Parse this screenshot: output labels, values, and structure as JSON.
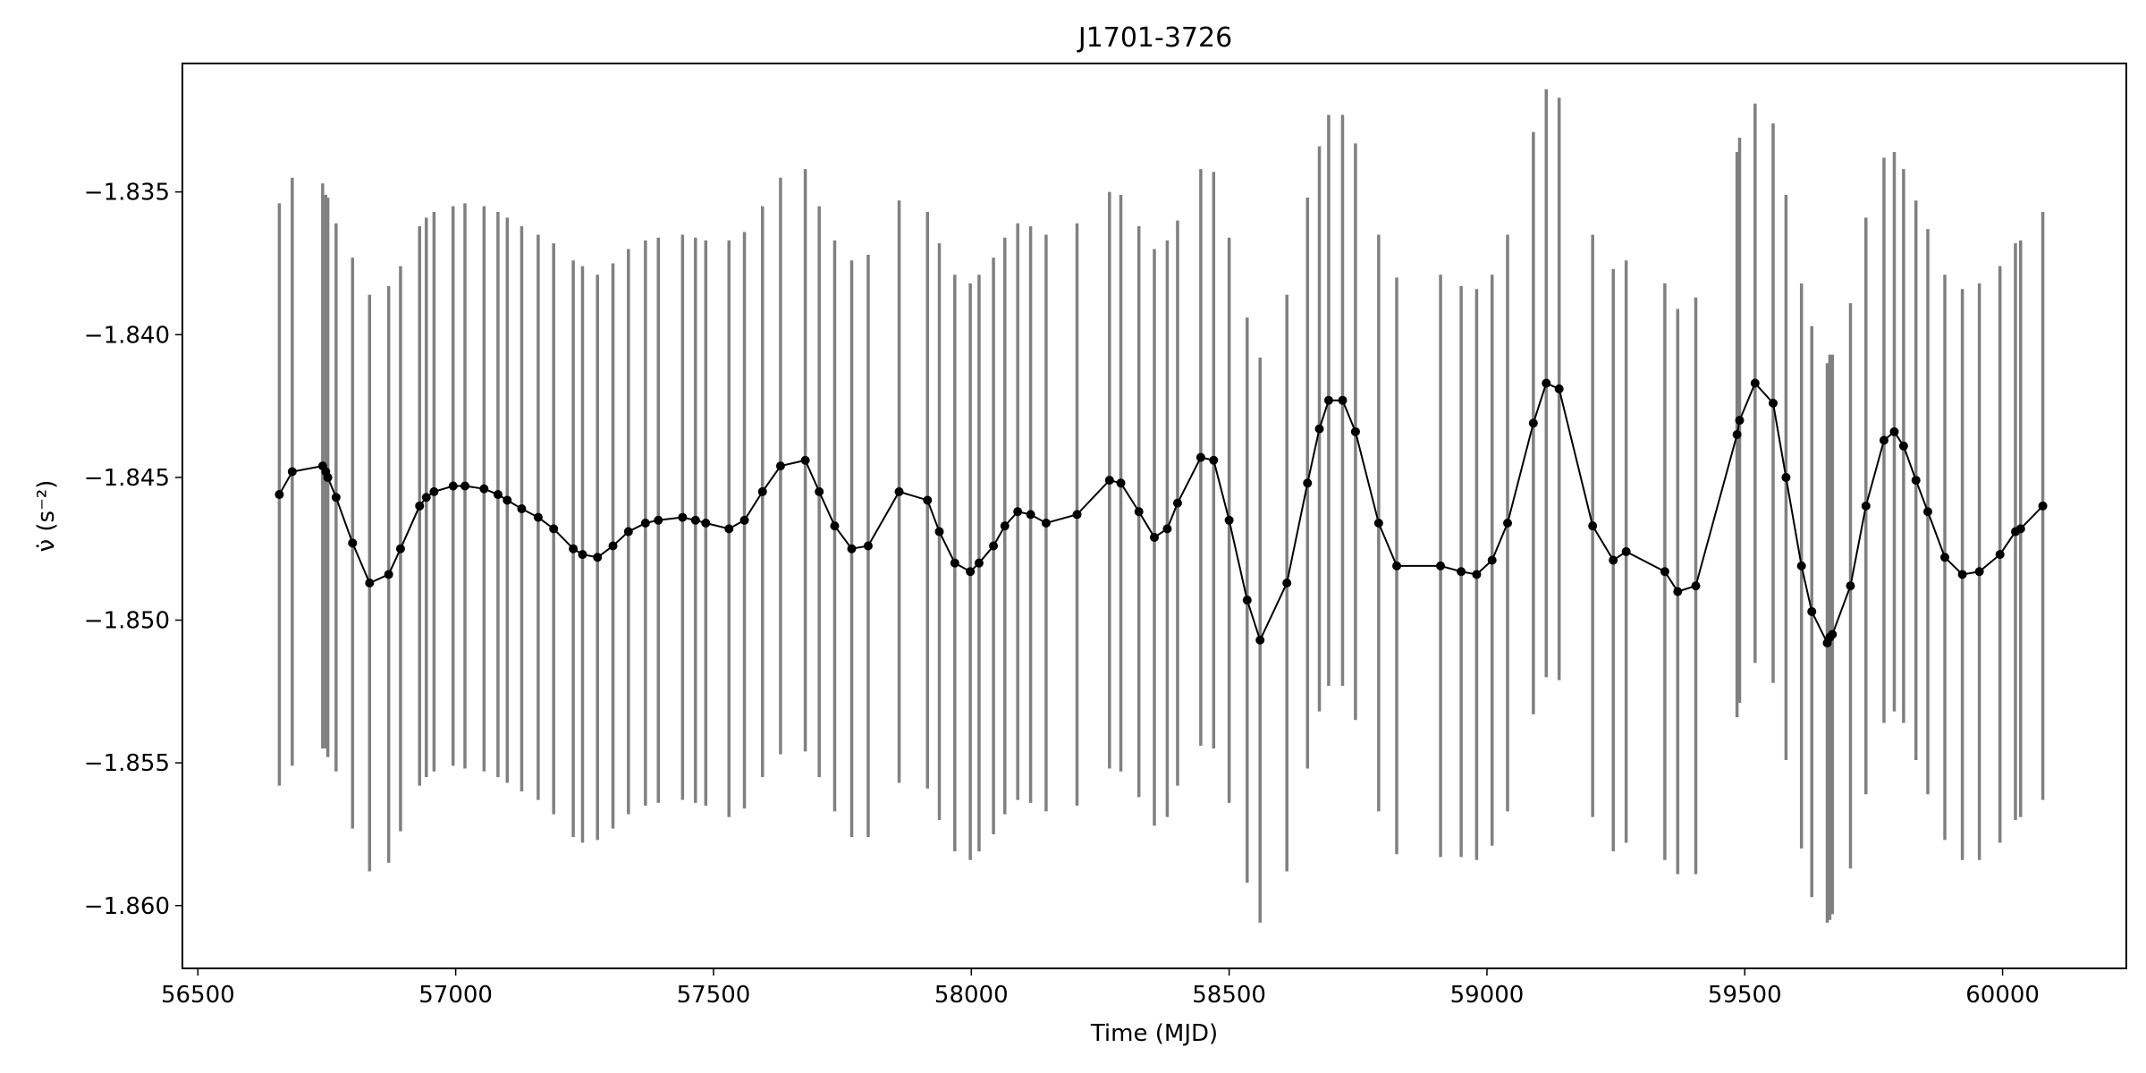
{
  "chart_data": {
    "type": "scatter",
    "title": "J1701-3726",
    "xlabel": "Time (MJD)",
    "ylabel": "ν̇ (s⁻²)",
    "xlim": [
      56470,
      60240
    ],
    "ylim": [
      -1.8622,
      -1.8305
    ],
    "x_ticks": [
      56500,
      57000,
      57500,
      58000,
      58500,
      59000,
      59500,
      60000
    ],
    "y_ticks": [
      -1.835,
      -1.84,
      -1.845,
      -1.85,
      -1.855,
      -1.86
    ],
    "x_tick_labels": [
      "56500",
      "57000",
      "57500",
      "58000",
      "58500",
      "59000",
      "59500",
      "60000"
    ],
    "y_tick_labels": [
      "−1.835",
      "−1.840",
      "−1.845",
      "−1.850",
      "−1.855",
      "−1.860"
    ],
    "grid": false,
    "line_color": "#000000",
    "marker_color": "#000000",
    "errorbar_color": "#808080",
    "series": [
      {
        "x": [
          56658,
          56683,
          56742,
          56748,
          56752,
          56768,
          56800,
          56833,
          56870,
          56893,
          56930,
          56943,
          56958,
          56995,
          57018,
          57055,
          57082,
          57100,
          57128,
          57160,
          57190,
          57228,
          57246,
          57275,
          57305,
          57335,
          57368,
          57393,
          57440,
          57465,
          57485,
          57530,
          57560,
          57595,
          57630,
          57678,
          57705,
          57735,
          57768,
          57800,
          57860,
          57915,
          57938,
          57968,
          57998,
          58015,
          58043,
          58065,
          58090,
          58115,
          58145,
          58205,
          58268,
          58290,
          58325,
          58355,
          58380,
          58400,
          58445,
          58470,
          58500,
          58535,
          58560,
          58612,
          58652,
          58675,
          58693,
          58720,
          58745,
          58790,
          58825,
          58910,
          58950,
          58980,
          59010,
          59040,
          59090,
          59115,
          59140,
          59205,
          59245,
          59270,
          59345,
          59370,
          59405,
          59485,
          59490,
          59520,
          59555,
          59580,
          59610,
          59630,
          59660,
          59665,
          59670,
          59705,
          59735,
          59770,
          59790,
          59808,
          59832,
          59855,
          59888,
          59922,
          59955,
          59995,
          60025,
          60035,
          60078
        ],
        "y": [
          -1.8456,
          -1.8448,
          -1.8446,
          -1.8448,
          -1.845,
          -1.8457,
          -1.8473,
          -1.8487,
          -1.8484,
          -1.8475,
          -1.846,
          -1.8457,
          -1.8455,
          -1.8453,
          -1.8453,
          -1.8454,
          -1.8456,
          -1.8458,
          -1.8461,
          -1.8464,
          -1.8468,
          -1.8475,
          -1.8477,
          -1.8478,
          -1.8474,
          -1.8469,
          -1.8466,
          -1.8465,
          -1.8464,
          -1.8465,
          -1.8466,
          -1.8468,
          -1.8465,
          -1.8455,
          -1.8446,
          -1.8444,
          -1.8455,
          -1.8467,
          -1.8475,
          -1.8474,
          -1.8455,
          -1.8458,
          -1.8469,
          -1.848,
          -1.8483,
          -1.848,
          -1.8474,
          -1.8467,
          -1.8462,
          -1.8463,
          -1.8466,
          -1.8463,
          -1.8451,
          -1.8452,
          -1.8462,
          -1.8471,
          -1.8468,
          -1.8459,
          -1.8443,
          -1.8444,
          -1.8465,
          -1.8493,
          -1.8507,
          -1.8487,
          -1.8452,
          -1.8433,
          -1.8423,
          -1.8423,
          -1.8434,
          -1.8466,
          -1.8481,
          -1.8481,
          -1.8483,
          -1.8484,
          -1.8479,
          -1.8466,
          -1.8431,
          -1.8417,
          -1.8419,
          -1.8467,
          -1.8479,
          -1.8476,
          -1.8483,
          -1.849,
          -1.8488,
          -1.8435,
          -1.843,
          -1.8417,
          -1.8424,
          -1.845,
          -1.8481,
          -1.8497,
          -1.8508,
          -1.8506,
          -1.8505,
          -1.8488,
          -1.846,
          -1.8437,
          -1.8434,
          -1.8439,
          -1.8451,
          -1.8462,
          -1.8478,
          -1.8484,
          -1.8483,
          -1.8477,
          -1.8469,
          -1.8468,
          -1.846
        ],
        "yerr": [
          0.0102,
          0.0103,
          0.0099,
          0.0097,
          0.0098,
          0.0096,
          0.01,
          0.0101,
          0.0101,
          0.0099,
          0.0098,
          0.0098,
          0.0098,
          0.0098,
          0.0099,
          0.0099,
          0.0099,
          0.0099,
          0.0099,
          0.0099,
          0.01,
          0.0101,
          0.0101,
          0.0099,
          0.0099,
          0.0099,
          0.0099,
          0.0099,
          0.0099,
          0.0099,
          0.0099,
          0.0101,
          0.0101,
          0.01,
          0.0101,
          0.0102,
          0.01,
          0.01,
          0.0101,
          0.0102,
          0.0102,
          0.0101,
          0.0101,
          0.0101,
          0.0101,
          0.0101,
          0.0101,
          0.0101,
          0.0101,
          0.0101,
          0.0101,
          0.0102,
          0.0101,
          0.0101,
          0.01,
          0.0101,
          0.0101,
          0.0099,
          0.0101,
          0.0101,
          0.0099,
          0.0099,
          0.0099,
          0.0101,
          0.01,
          0.0099,
          0.01,
          0.01,
          0.0101,
          0.0101,
          0.0101,
          0.0102,
          0.01,
          0.01,
          0.01,
          0.0101,
          0.0102,
          0.0103,
          0.0102,
          0.0102,
          0.0102,
          0.0102,
          0.0101,
          0.0099,
          0.0101,
          0.0099,
          0.0099,
          0.0098,
          0.0098,
          0.0099,
          0.0099,
          0.01,
          0.0098,
          0.0099,
          0.0098,
          0.0099,
          0.0101,
          0.0099,
          0.0098,
          0.0097,
          0.0098,
          0.0099,
          0.0099,
          0.01,
          0.0101,
          0.0101,
          0.0101,
          0.0101,
          0.0103
        ]
      }
    ]
  }
}
